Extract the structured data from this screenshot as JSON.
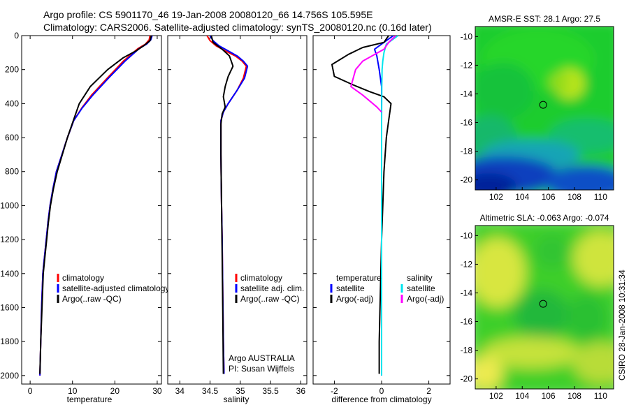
{
  "figure": {
    "title_line1": "Argo profile: CS 5901170_46 19-Jan-2008 20080120_66 14.756S 105.595E",
    "title_line2": "Climatology: CARS2006. Satellite-adjusted climatology: synTS_20080120.nc (0.16d later)",
    "side_label": "CSIRO 28-Jan-2008 10:31:34"
  },
  "colors": {
    "climatology": "#ff0000",
    "satellite": "#0000ff",
    "argo": "#000000",
    "satellite_salinity": "#00e5ee",
    "argo_salinity_adj": "#ff00ff"
  },
  "chart_data": [
    {
      "type": "line",
      "xlabel": "temperature",
      "xlim": [
        -2,
        31
      ],
      "ylim": [
        0,
        2050
      ],
      "y_reversed": true,
      "xticks": [
        "0",
        "10",
        "20",
        "30"
      ],
      "yticks": [
        "0",
        "200",
        "400",
        "600",
        "800",
        "1000",
        "1200",
        "1400",
        "1600",
        "1800",
        "2000"
      ],
      "legend_labels": [
        "climatology",
        "satellite-adjusted climatology",
        "Argo(..raw -QC)"
      ],
      "series": [
        {
          "name": "climatology",
          "color": "#ff0000",
          "x": [
            28.3,
            28.1,
            27.2,
            25.5,
            22.0,
            18.2,
            14.5,
            12.2,
            10.3,
            8.8,
            7.5,
            6.2,
            5.4,
            4.7,
            4.2,
            3.8,
            3.4,
            3.0,
            2.7,
            2.5,
            2.3
          ],
          "y": [
            0,
            25,
            50,
            75,
            150,
            250,
            350,
            425,
            500,
            600,
            700,
            800,
            900,
            1000,
            1100,
            1200,
            1300,
            1400,
            1600,
            1800,
            2000
          ]
        },
        {
          "name": "satellite-adjusted climatology",
          "color": "#0000ff",
          "x": [
            28.8,
            28.5,
            27.5,
            25.8,
            22.4,
            18.5,
            14.8,
            12.3,
            10.3,
            8.8,
            7.5,
            6.2,
            5.4,
            4.7,
            4.2,
            3.8,
            3.4,
            3.0,
            2.7,
            2.5,
            2.3
          ],
          "y": [
            0,
            25,
            50,
            75,
            150,
            250,
            350,
            425,
            500,
            600,
            700,
            800,
            900,
            1000,
            1100,
            1200,
            1300,
            1400,
            1600,
            1800,
            2000
          ]
        },
        {
          "name": "Argo(..raw -QC)",
          "color": "#000000",
          "x": [
            28.6,
            28.3,
            26.8,
            25.0,
            22.0,
            18.3,
            14.2,
            11.6,
            10.2,
            8.8,
            7.6,
            6.4,
            5.5,
            4.8,
            4.3,
            3.9,
            3.5,
            3.1,
            2.8,
            2.5,
            2.3
          ],
          "y": [
            0,
            30,
            60,
            90,
            130,
            200,
            300,
            400,
            500,
            600,
            700,
            800,
            900,
            1000,
            1100,
            1200,
            1300,
            1400,
            1600,
            1800,
            1990
          ]
        }
      ]
    },
    {
      "type": "line",
      "xlabel": "salinity",
      "xlim": [
        33.8,
        36.1
      ],
      "ylim": [
        0,
        2050
      ],
      "y_reversed": true,
      "xticks": [
        "34",
        "34.5",
        "35",
        "35.5",
        "36"
      ],
      "legend_labels": [
        "climatology",
        "satellite adj. clim.",
        "Argo(..raw -QC)"
      ],
      "annotation_line1": "Argo AUSTRALIA",
      "annotation_line2": "PI: Susan Wijffels",
      "series": [
        {
          "name": "climatology",
          "color": "#ff0000",
          "x": [
            34.45,
            34.5,
            34.6,
            34.75,
            34.92,
            35.03,
            35.1,
            35.05,
            34.95,
            34.8,
            34.72,
            34.68,
            34.68,
            34.69,
            34.7,
            34.71,
            34.72,
            34.73
          ],
          "y": [
            0,
            30,
            60,
            90,
            120,
            150,
            180,
            250,
            320,
            400,
            450,
            500,
            700,
            1000,
            1200,
            1500,
            1800,
            1990
          ]
        },
        {
          "name": "satellite adj. clim.",
          "color": "#0000ff",
          "x": [
            34.5,
            34.55,
            34.65,
            34.8,
            34.95,
            35.05,
            35.12,
            35.07,
            34.95,
            34.8,
            34.72,
            34.68,
            34.68,
            34.69,
            34.7,
            34.71,
            34.72,
            34.73
          ],
          "y": [
            0,
            30,
            60,
            90,
            120,
            150,
            180,
            250,
            320,
            400,
            450,
            500,
            700,
            1000,
            1200,
            1500,
            1800,
            1990
          ]
        },
        {
          "name": "Argo(..raw -QC)",
          "color": "#000000",
          "x": [
            34.52,
            34.55,
            34.7,
            34.82,
            34.88,
            34.8,
            34.75,
            34.72,
            34.75,
            34.7,
            34.68,
            34.68,
            34.69,
            34.7,
            34.71,
            34.72
          ],
          "y": [
            0,
            40,
            80,
            120,
            180,
            240,
            300,
            360,
            420,
            460,
            520,
            700,
            1000,
            1300,
            1600,
            1990
          ]
        }
      ]
    },
    {
      "type": "line",
      "xlabel": "difference from climatology",
      "xlim": [
        -2.9,
        2.9
      ],
      "ylim": [
        0,
        2050
      ],
      "y_reversed": true,
      "xticks": [
        "-2",
        "0",
        "2"
      ],
      "legend_header_left": "temperature",
      "legend_header_right": "salinity",
      "legend_left": [
        "satellite",
        "Argo(-adj)"
      ],
      "legend_right": [
        "satellite",
        "Argo(-adj)"
      ],
      "series": [
        {
          "name": "temperature satellite",
          "color": "#0000ff",
          "x": [
            0.5,
            0.1,
            -0.3,
            -0.2,
            -0.1,
            0.0,
            0.0,
            0.0,
            0.0,
            0.0,
            0.0
          ],
          "y": [
            0,
            40,
            80,
            120,
            200,
            300,
            400,
            600,
            1000,
            1500,
            2000
          ]
        },
        {
          "name": "temperature Argo(-adj)",
          "color": "#000000",
          "x": [
            0.3,
            0.1,
            -0.8,
            -1.4,
            -2.1,
            -2.0,
            -1.2,
            -0.5,
            0.1,
            0.4,
            0.3,
            0.2,
            0.1,
            0.05,
            0.0,
            -0.05,
            -0.1,
            -0.1
          ],
          "y": [
            0,
            40,
            70,
            110,
            170,
            240,
            290,
            330,
            360,
            400,
            500,
            600,
            800,
            1000,
            1200,
            1500,
            1800,
            1990
          ]
        },
        {
          "name": "salinity satellite",
          "color": "#00e5ee",
          "x": [
            0.7,
            0.2,
            0.1,
            0.05,
            0.02,
            0.01,
            0.0,
            0.0,
            0.0,
            0.0
          ],
          "y": [
            0,
            50,
            100,
            150,
            200,
            300,
            500,
            1000,
            1500,
            2000
          ]
        },
        {
          "name": "salinity Argo(-adj)",
          "color": "#ff00ff",
          "x": [
            0.6,
            0.3,
            0.1,
            -0.8,
            -1.1,
            -1.3,
            -0.8,
            -0.2,
            0.0
          ],
          "y": [
            0,
            40,
            80,
            150,
            200,
            300,
            350,
            420,
            450
          ]
        }
      ]
    },
    {
      "type": "heatmap",
      "title": "AMSR-E SST: 28.1 Argo: 27.5",
      "xlim": [
        100.4,
        111
      ],
      "ylim": [
        -20.7,
        -9.3
      ],
      "xticks": [
        "102",
        "104",
        "106",
        "108",
        "110"
      ],
      "yticks": [
        "-10",
        "-12",
        "-14",
        "-16",
        "-18",
        "-20"
      ],
      "profile_marker": [
        105.6,
        -14.76
      ]
    },
    {
      "type": "heatmap",
      "title": "Altimetric SLA: -0.063 Argo: -0.074",
      "xlim": [
        100.4,
        111
      ],
      "ylim": [
        -20.7,
        -9.3
      ],
      "xticks": [
        "102",
        "104",
        "106",
        "108",
        "110"
      ],
      "yticks": [
        "-10",
        "-12",
        "-14",
        "-16",
        "-18",
        "-20"
      ],
      "profile_marker": [
        105.6,
        -14.76
      ]
    }
  ]
}
